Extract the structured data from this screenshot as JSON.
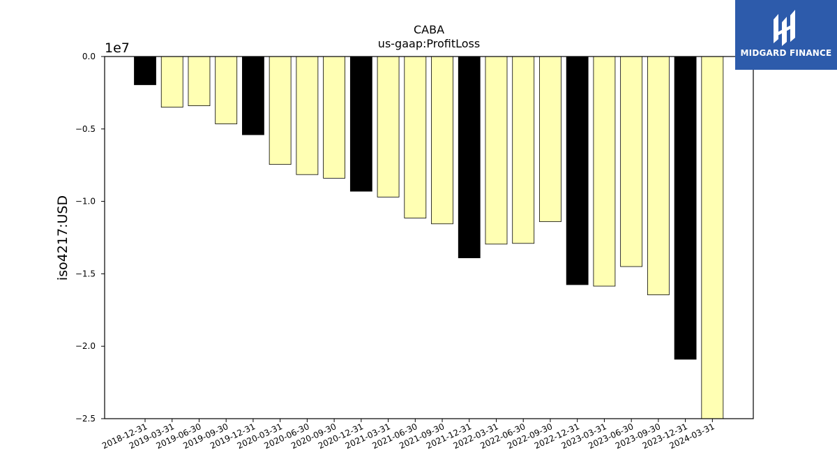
{
  "chart_data": {
    "type": "bar",
    "title": "CABA",
    "subtitle": "us-gaap:ProfitLoss",
    "ylabel": "iso4217:USD",
    "xlabel": "",
    "y_offset_label": "1e7",
    "ylim": [
      -25000000,
      0
    ],
    "yticks": [
      0,
      -5000000,
      -10000000,
      -15000000,
      -20000000,
      -25000000
    ],
    "ytick_labels": [
      "0.0",
      "−0.5",
      "−1.0",
      "−1.5",
      "−2.0",
      "−2.5"
    ],
    "categories": [
      "2018-12-31",
      "2019-03-31",
      "2019-06-30",
      "2019-09-30",
      "2019-12-31",
      "2020-03-31",
      "2020-06-30",
      "2020-09-30",
      "2020-12-31",
      "2021-03-31",
      "2021-06-30",
      "2021-09-30",
      "2021-12-31",
      "2022-03-31",
      "2022-06-30",
      "2022-09-30",
      "2022-12-31",
      "2023-03-31",
      "2023-06-30",
      "2023-09-30",
      "2023-12-31",
      "2024-03-31"
    ],
    "values": [
      -1950000,
      -3500000,
      -3400000,
      -4650000,
      -5400000,
      -7450000,
      -8150000,
      -8400000,
      -9300000,
      -9700000,
      -11150000,
      -11550000,
      -13900000,
      -12950000,
      -12900000,
      -11400000,
      -15750000,
      -15850000,
      -14500000,
      -16450000,
      -20900000,
      -25000000
    ],
    "bar_colors": [
      "#000000",
      "#ffffb3",
      "#ffffb3",
      "#ffffb3",
      "#000000",
      "#ffffb3",
      "#ffffb3",
      "#ffffb3",
      "#000000",
      "#ffffb3",
      "#ffffb3",
      "#ffffb3",
      "#000000",
      "#ffffb3",
      "#ffffb3",
      "#ffffb3",
      "#000000",
      "#ffffb3",
      "#ffffb3",
      "#ffffb3",
      "#000000",
      "#ffffb3"
    ],
    "grid": false,
    "legend": "none"
  },
  "logo": {
    "text": "MIDGARD FINANCE",
    "background": "#2d5bab"
  }
}
